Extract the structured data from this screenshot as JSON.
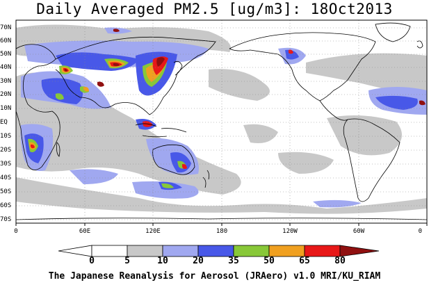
{
  "title": "Daily Averaged PM2.5 [ug/m3]: 18Oct2013",
  "map": {
    "lat_labels": [
      "70N",
      "60N",
      "50N",
      "40N",
      "30N",
      "20N",
      "10N",
      "EQ",
      "10S",
      "20S",
      "30S",
      "40S",
      "50S",
      "60S",
      "70S"
    ],
    "lon_labels": [
      "0",
      "60E",
      "120E",
      "180",
      "120W",
      "60W",
      "0"
    ]
  },
  "legend": {
    "ticks": [
      "0",
      "5",
      "10",
      "20",
      "35",
      "50",
      "65",
      "80"
    ],
    "colors": [
      "#ffffff",
      "#c8c8c8",
      "#a0a8f0",
      "#4858e8",
      "#88c838",
      "#f0a020",
      "#e81818",
      "#901010"
    ]
  },
  "footer": "The Japanese Reanalysis for Aerosol (JRAero) v1.0 MRI/KU_RIAM"
}
